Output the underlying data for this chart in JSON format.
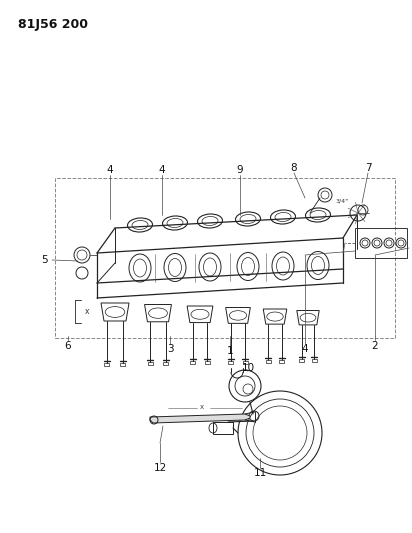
{
  "title": "81J56 200",
  "bg": "#ffffff",
  "fw": 4.12,
  "fh": 5.33,
  "dpi": 100,
  "lc": "#222222",
  "thin": 0.5,
  "med": 0.8,
  "thick": 1.2
}
